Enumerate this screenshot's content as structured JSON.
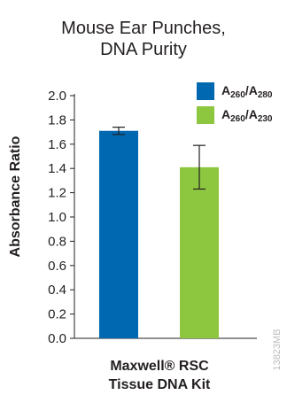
{
  "colors": {
    "series1": "#0067b1",
    "series2": "#8dc63f",
    "axis": "#231f20"
  },
  "chart_data": {
    "type": "bar",
    "title": [
      "Mouse Ear Punches,",
      "DNA Purity"
    ],
    "ylabel": "Absorbance Ratio",
    "xlabel": "",
    "categories": [
      "Maxwell® RSC Tissue DNA Kit"
    ],
    "category_lines": [
      "Maxwell® RSC",
      "Tissue DNA Kit"
    ],
    "ylim": [
      0,
      2.0
    ],
    "yticks": [
      "0.0",
      "0.2",
      "0.4",
      "0.6",
      "0.8",
      "1.0",
      "1.2",
      "1.4",
      "1.6",
      "1.8",
      "2.0"
    ],
    "grid": false,
    "legend_position": "top-right",
    "series": [
      {
        "name": "A260/A280",
        "values": [
          1.71
        ],
        "error": [
          0.03
        ],
        "color": "#0067b1",
        "label_parts": {
          "a": "A",
          "sub1": "260",
          "slash": "/A",
          "sub2": "280"
        }
      },
      {
        "name": "A260/A230",
        "values": [
          1.41
        ],
        "error": [
          0.18
        ],
        "color": "#8dc63f",
        "label_parts": {
          "a": "A",
          "sub1": "260",
          "slash": "/A",
          "sub2": "230"
        }
      }
    ]
  },
  "watermark": "13823MB"
}
